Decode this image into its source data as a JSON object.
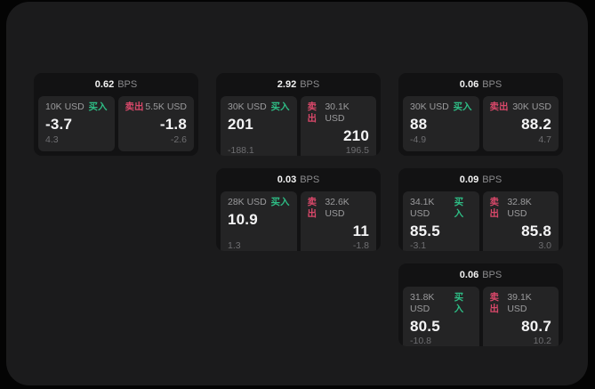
{
  "labels": {
    "bps_unit": "BPS",
    "buy": "买入",
    "sell": "卖出"
  },
  "colors": {
    "background": "#040404",
    "panel": "#1b1b1c",
    "card": "#121213",
    "subcard": "#242425",
    "buy_green": "#2ebd85",
    "sell_red": "#d9486a",
    "primary_text": "#f4f4f5",
    "muted_text": "#9b9b9d",
    "dim_text": "#6e6e71"
  },
  "cards": [
    {
      "bps": "0.62",
      "buy": {
        "amount": "10K USD",
        "price": "-3.7",
        "change": "4.3"
      },
      "sell": {
        "amount": "5.5K USD",
        "price": "-1.8",
        "change": "-2.6"
      }
    },
    {
      "bps": "2.92",
      "buy": {
        "amount": "30K USD",
        "price": "201",
        "change": "-188.1"
      },
      "sell": {
        "amount": "30.1K USD",
        "price": "210",
        "change": "196.5"
      }
    },
    {
      "bps": "0.06",
      "buy": {
        "amount": "30K USD",
        "price": "88",
        "change": "-4.9"
      },
      "sell": {
        "amount": "30K USD",
        "price": "88.2",
        "change": "4.7"
      }
    },
    {
      "bps": "0.03",
      "buy": {
        "amount": "28K USD",
        "price": "10.9",
        "change": "1.3"
      },
      "sell": {
        "amount": "32.6K USD",
        "price": "11",
        "change": "-1.8"
      }
    },
    {
      "bps": "0.09",
      "buy": {
        "amount": "34.1K USD",
        "price": "85.5",
        "change": "-3.1"
      },
      "sell": {
        "amount": "32.8K USD",
        "price": "85.8",
        "change": "3.0"
      }
    },
    {
      "bps": "0.06",
      "buy": {
        "amount": "31.8K USD",
        "price": "80.5",
        "change": "-10.8"
      },
      "sell": {
        "amount": "39.1K USD",
        "price": "80.7",
        "change": "10.2"
      }
    }
  ]
}
